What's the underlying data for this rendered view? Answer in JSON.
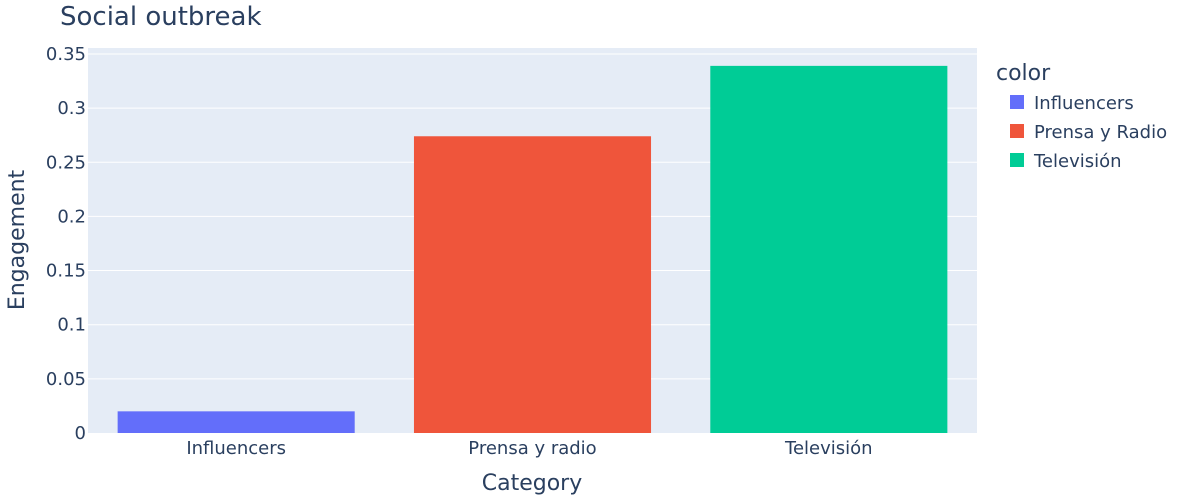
{
  "chart_data": {
    "type": "bar",
    "title": "Social outbreak",
    "xlabel": "Category",
    "ylabel": "Engagement",
    "categories": [
      "Influencers",
      "Prensa y radio",
      "Televisión"
    ],
    "values": [
      0.02,
      0.274,
      0.339
    ],
    "ylim": [
      0,
      0.3555
    ],
    "yticks": [
      "0",
      "0.05",
      "0.1",
      "0.15",
      "0.2",
      "0.25",
      "0.3",
      "0.35"
    ],
    "ytick_values": [
      0,
      0.05,
      0.1,
      0.15,
      0.2,
      0.25,
      0.3,
      0.35
    ],
    "grid": true,
    "legend": {
      "title": "color",
      "placement": "right",
      "entries": [
        "Influencers",
        "Prensa y Radio",
        "Televisión"
      ]
    },
    "colors": [
      "#636efa",
      "#EF553B",
      "#00cc96"
    ],
    "plot_background": "#e5ecf6"
  }
}
